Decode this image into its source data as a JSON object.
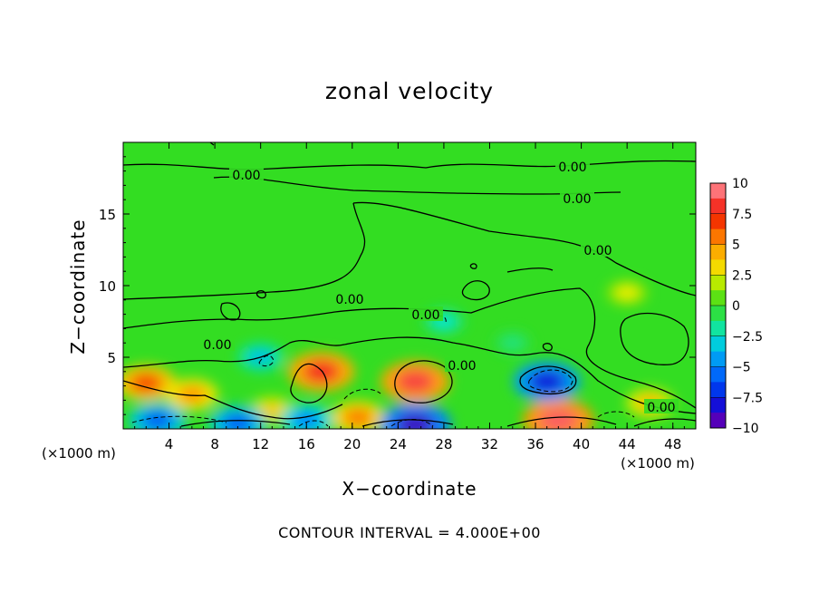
{
  "chart_data": {
    "type": "heatmap",
    "title": "zonal velocity",
    "xlabel": "X−coordinate",
    "ylabel": "Z−coordinate",
    "x_unit_label": "(×1000 m)",
    "xlim": [
      0,
      50
    ],
    "ylim": [
      0,
      20
    ],
    "x_ticks": [
      4,
      8,
      12,
      16,
      20,
      24,
      28,
      32,
      36,
      40,
      44,
      48
    ],
    "y_ticks": [
      5,
      10,
      15
    ],
    "colorbar": {
      "range": [
        -10,
        10
      ],
      "ticks": [
        "10",
        "7.5",
        "5",
        "2.5",
        "0",
        "−2.5",
        "−5",
        "−7.5",
        "−10"
      ]
    },
    "contour_label": "0.00",
    "contour_interval_text": "CONTOUR INTERVAL = 4.000E+00",
    "features": [
      {
        "x": 2,
        "z": 3.2,
        "value": 6.5
      },
      {
        "x": 6,
        "z": 2.4,
        "value": 5.0
      },
      {
        "x": 17.3,
        "z": 4.0,
        "value": 8.0
      },
      {
        "x": 25.5,
        "z": 3.3,
        "value": 8.5
      },
      {
        "x": 38,
        "z": 0.6,
        "value": 9.0
      },
      {
        "x": 20.5,
        "z": 0.8,
        "value": 5.5
      },
      {
        "x": 13,
        "z": 1.3,
        "value": 3.5
      },
      {
        "x": 46,
        "z": 1.8,
        "value": 4.0
      },
      {
        "x": 44,
        "z": 9.5,
        "value": 2.5
      },
      {
        "x": 37,
        "z": 3.3,
        "value": -8.0
      },
      {
        "x": 25.5,
        "z": 0.3,
        "value": -9.0
      },
      {
        "x": 10,
        "z": 0.4,
        "value": -6.0
      },
      {
        "x": 3,
        "z": 0.6,
        "value": -6.0
      },
      {
        "x": 16,
        "z": 0.6,
        "value": -5.0
      },
      {
        "x": 28,
        "z": 7.5,
        "value": -2.5
      },
      {
        "x": 12,
        "z": 5.0,
        "value": -3.5
      },
      {
        "x": 34,
        "z": 6.0,
        "value": -1.5
      }
    ]
  }
}
